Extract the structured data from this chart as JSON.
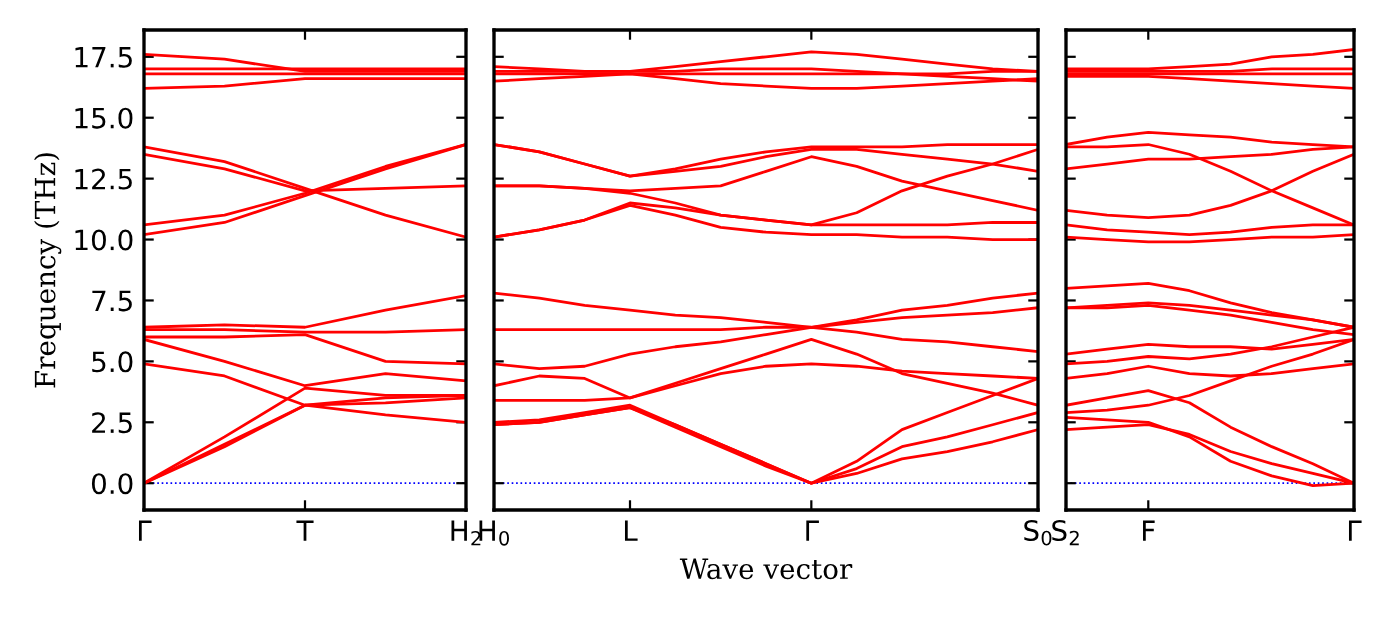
{
  "chart_data": [
    {
      "type": "line",
      "ylabel": "Frequency (THz)",
      "categories": [
        "Γ",
        null,
        "T",
        null,
        "H$_{2}$"
      ],
      "ylim": [
        -1.1,
        18.6
      ],
      "yticks": [
        {
          "value": 0,
          "label": "0.0"
        },
        {
          "value": 2.5,
          "label": "2.5"
        },
        {
          "value": 5,
          "label": "5.0"
        },
        {
          "value": 7.5,
          "label": "7.5"
        },
        {
          "value": 10,
          "label": "10.0"
        },
        {
          "value": 12.5,
          "label": "12.5"
        },
        {
          "value": 15,
          "label": "15.0"
        },
        {
          "value": 17.5,
          "label": "17.5"
        }
      ],
      "ref_lines": [
        {
          "axis": "y",
          "value": 0,
          "color": "#0000ff",
          "line_style": "dotted"
        }
      ],
      "grid": false,
      "legend": false,
      "marker": "none",
      "line_style": "solid",
      "series": [
        {
          "color": "#ff0000",
          "values": [
            17.6,
            17.4,
            16.9,
            16.9,
            16.9
          ]
        },
        {
          "color": "#ff0000",
          "values": [
            17.0,
            17.0,
            17.0,
            17.0,
            17.0
          ]
        },
        {
          "color": "#ff0000",
          "values": [
            16.8,
            16.8,
            16.8,
            16.8,
            16.8
          ]
        },
        {
          "color": "#ff0000",
          "values": [
            16.2,
            16.3,
            16.6,
            16.6,
            16.6
          ]
        },
        {
          "color": "#ff0000",
          "values": [
            13.8,
            13.2,
            12.1,
            11.0,
            10.1
          ]
        },
        {
          "color": "#ff0000",
          "values": [
            13.5,
            12.9,
            12.0,
            12.1,
            12.2
          ]
        },
        {
          "color": "#ff0000",
          "values": [
            10.6,
            11.0,
            11.9,
            13.0,
            13.9
          ]
        },
        {
          "color": "#ff0000",
          "values": [
            10.2,
            10.7,
            11.8,
            12.9,
            13.9
          ]
        },
        {
          "color": "#ff0000",
          "values": [
            6.4,
            6.5,
            6.4,
            7.1,
            7.7
          ]
        },
        {
          "color": "#ff0000",
          "values": [
            6.3,
            6.3,
            6.2,
            6.2,
            6.3
          ]
        },
        {
          "color": "#ff0000",
          "values": [
            6.0,
            6.0,
            6.1,
            5.0,
            4.9
          ]
        },
        {
          "color": "#ff0000",
          "values": [
            5.9,
            5.0,
            4.0,
            4.5,
            4.2
          ]
        },
        {
          "color": "#ff0000",
          "values": [
            4.9,
            4.4,
            3.2,
            3.5,
            3.6
          ]
        },
        {
          "color": "#ff0000",
          "values": [
            0,
            1.6,
            3.2,
            2.8,
            2.5
          ]
        },
        {
          "color": "#ff0000",
          "values": [
            0,
            1.9,
            3.9,
            3.6,
            3.6
          ]
        },
        {
          "color": "#ff0000",
          "values": [
            0,
            1.5,
            3.2,
            3.3,
            3.5
          ]
        }
      ]
    },
    {
      "type": "line",
      "xlabel": "Wave vector",
      "categories": [
        "H$_{0}$",
        null,
        null,
        "L",
        null,
        null,
        null,
        "Γ",
        null,
        null,
        null,
        null,
        "S$_{0}$"
      ],
      "ylim": [
        -1.1,
        18.6
      ],
      "yticks": [
        {
          "value": 0,
          "label": null
        },
        {
          "value": 2.5,
          "label": null
        },
        {
          "value": 5,
          "label": null
        },
        {
          "value": 7.5,
          "label": null
        },
        {
          "value": 10,
          "label": null
        },
        {
          "value": 12.5,
          "label": null
        },
        {
          "value": 15,
          "label": null
        },
        {
          "value": 17.5,
          "label": null
        }
      ],
      "tick_labels": "x",
      "ref_lines": [
        {
          "axis": "y",
          "value": 0,
          "color": "#0000ff",
          "line_style": "dotted"
        }
      ],
      "grid": false,
      "legend": false,
      "marker": "none",
      "line_style": "solid",
      "series": [
        {
          "color": "#ff0000",
          "values": [
            17.1,
            17.0,
            16.9,
            16.9,
            17.1,
            17.3,
            17.5,
            17.7,
            17.6,
            17.4,
            17.2,
            17.0,
            16.9
          ]
        },
        {
          "color": "#ff0000",
          "values": [
            16.9,
            16.9,
            16.9,
            16.9,
            16.9,
            17.0,
            17.0,
            17.0,
            16.9,
            16.8,
            16.7,
            16.6,
            16.5
          ]
        },
        {
          "color": "#ff0000",
          "values": [
            16.8,
            16.8,
            16.8,
            16.8,
            16.8,
            16.8,
            16.8,
            16.8,
            16.8,
            16.8,
            16.8,
            16.9,
            16.9
          ]
        },
        {
          "color": "#ff0000",
          "values": [
            16.5,
            16.6,
            16.7,
            16.8,
            16.6,
            16.4,
            16.3,
            16.2,
            16.2,
            16.3,
            16.4,
            16.5,
            16.6
          ]
        },
        {
          "color": "#ff0000",
          "values": [
            13.9,
            13.6,
            13.1,
            12.6,
            12.9,
            13.3,
            13.6,
            13.8,
            13.8,
            13.8,
            13.9,
            13.9,
            13.9
          ]
        },
        {
          "color": "#ff0000",
          "values": [
            13.9,
            13.6,
            13.1,
            12.6,
            12.8,
            13.0,
            13.4,
            13.7,
            13.7,
            13.5,
            13.3,
            13.1,
            12.8
          ]
        },
        {
          "color": "#ff0000",
          "values": [
            12.2,
            12.2,
            12.1,
            12.0,
            12.1,
            12.2,
            12.8,
            13.4,
            13.0,
            12.4,
            12.0,
            11.6,
            11.2
          ]
        },
        {
          "color": "#ff0000",
          "values": [
            12.2,
            12.2,
            12.1,
            11.9,
            11.5,
            11.0,
            10.8,
            10.6,
            11.1,
            12.0,
            12.6,
            13.1,
            13.7
          ]
        },
        {
          "color": "#ff0000",
          "values": [
            10.1,
            10.4,
            10.8,
            11.5,
            11.3,
            11.0,
            10.8,
            10.6,
            10.6,
            10.6,
            10.6,
            10.7,
            10.7
          ]
        },
        {
          "color": "#ff0000",
          "values": [
            10.1,
            10.4,
            10.8,
            11.4,
            11.0,
            10.5,
            10.3,
            10.2,
            10.2,
            10.1,
            10.1,
            10.0,
            10.0
          ]
        },
        {
          "color": "#ff0000",
          "values": [
            7.8,
            7.6,
            7.3,
            7.1,
            6.9,
            6.8,
            6.6,
            6.4,
            6.7,
            7.1,
            7.3,
            7.6,
            7.8
          ]
        },
        {
          "color": "#ff0000",
          "values": [
            6.3,
            6.3,
            6.3,
            6.3,
            6.3,
            6.3,
            6.4,
            6.4,
            6.6,
            6.8,
            6.9,
            7.0,
            7.2
          ]
        },
        {
          "color": "#ff0000",
          "values": [
            4.9,
            4.7,
            4.8,
            5.3,
            5.6,
            5.8,
            6.1,
            6.4,
            6.2,
            5.9,
            5.8,
            5.6,
            5.4
          ]
        },
        {
          "color": "#ff0000",
          "values": [
            4.0,
            4.4,
            4.3,
            3.5,
            4.1,
            4.7,
            5.3,
            5.9,
            5.3,
            4.5,
            4.1,
            3.7,
            3.2
          ]
        },
        {
          "color": "#ff0000",
          "values": [
            3.4,
            3.4,
            3.4,
            3.5,
            4.0,
            4.5,
            4.8,
            4.9,
            4.8,
            4.6,
            4.5,
            4.4,
            4.3
          ]
        },
        {
          "color": "#ff0000",
          "values": [
            2.4,
            2.5,
            2.8,
            3.1,
            2.4,
            1.6,
            0.8,
            0,
            0.9,
            2.2,
            2.9,
            3.6,
            4.3
          ]
        },
        {
          "color": "#ff0000",
          "values": [
            2.5,
            2.6,
            2.9,
            3.2,
            2.4,
            1.6,
            0.8,
            0,
            0.6,
            1.5,
            1.9,
            2.4,
            2.9
          ]
        },
        {
          "color": "#ff0000",
          "values": [
            2.4,
            2.5,
            2.8,
            3.1,
            2.3,
            1.5,
            0.7,
            0,
            0.4,
            1.0,
            1.3,
            1.7,
            2.2
          ]
        }
      ]
    },
    {
      "type": "line",
      "categories": [
        "S$_{2}$",
        null,
        "F",
        null,
        null,
        null,
        null,
        "Γ"
      ],
      "ylim": [
        -1.1,
        18.6
      ],
      "yticks": [
        {
          "value": 0,
          "label": null
        },
        {
          "value": 2.5,
          "label": null
        },
        {
          "value": 5,
          "label": null
        },
        {
          "value": 7.5,
          "label": null
        },
        {
          "value": 10,
          "label": null
        },
        {
          "value": 12.5,
          "label": null
        },
        {
          "value": 15,
          "label": null
        },
        {
          "value": 17.5,
          "label": null
        }
      ],
      "tick_labels": "x",
      "ref_lines": [
        {
          "axis": "y",
          "value": 0,
          "color": "#0000ff",
          "line_style": "dotted"
        }
      ],
      "grid": false,
      "legend": false,
      "marker": "none",
      "line_style": "solid",
      "series": [
        {
          "color": "#ff0000",
          "values": [
            17.0,
            17.0,
            17.0,
            17.1,
            17.2,
            17.5,
            17.6,
            17.8
          ]
        },
        {
          "color": "#ff0000",
          "values": [
            16.9,
            16.9,
            16.9,
            16.9,
            16.9,
            17.0,
            17.0,
            17.0
          ]
        },
        {
          "color": "#ff0000",
          "values": [
            16.8,
            16.8,
            16.8,
            16.8,
            16.8,
            16.8,
            16.8,
            16.8
          ]
        },
        {
          "color": "#ff0000",
          "values": [
            16.7,
            16.7,
            16.7,
            16.6,
            16.5,
            16.4,
            16.3,
            16.2
          ]
        },
        {
          "color": "#ff0000",
          "values": [
            13.9,
            14.2,
            14.4,
            14.3,
            14.2,
            14.0,
            13.9,
            13.8
          ]
        },
        {
          "color": "#ff0000",
          "values": [
            13.8,
            13.8,
            13.9,
            13.5,
            12.8,
            12.0,
            11.3,
            10.6
          ]
        },
        {
          "color": "#ff0000",
          "values": [
            12.9,
            13.1,
            13.3,
            13.3,
            13.4,
            13.5,
            13.7,
            13.8
          ]
        },
        {
          "color": "#ff0000",
          "values": [
            11.2,
            11.0,
            10.9,
            11.0,
            11.4,
            12.0,
            12.8,
            13.5
          ]
        },
        {
          "color": "#ff0000",
          "values": [
            10.6,
            10.4,
            10.3,
            10.2,
            10.3,
            10.5,
            10.6,
            10.6
          ]
        },
        {
          "color": "#ff0000",
          "values": [
            10.1,
            10.0,
            9.9,
            9.9,
            10.0,
            10.1,
            10.1,
            10.2
          ]
        },
        {
          "color": "#ff0000",
          "values": [
            8.0,
            8.1,
            8.2,
            7.9,
            7.4,
            7.0,
            6.7,
            6.4
          ]
        },
        {
          "color": "#ff0000",
          "values": [
            7.2,
            7.3,
            7.4,
            7.3,
            7.1,
            6.9,
            6.7,
            6.4
          ]
        },
        {
          "color": "#ff0000",
          "values": [
            7.2,
            7.2,
            7.3,
            7.1,
            6.9,
            6.6,
            6.3,
            6.1
          ]
        },
        {
          "color": "#ff0000",
          "values": [
            5.3,
            5.5,
            5.7,
            5.6,
            5.6,
            5.5,
            5.7,
            5.9
          ]
        },
        {
          "color": "#ff0000",
          "values": [
            4.9,
            5.0,
            5.2,
            5.1,
            5.3,
            5.6,
            6.0,
            6.4
          ]
        },
        {
          "color": "#ff0000",
          "values": [
            4.3,
            4.5,
            4.8,
            4.5,
            4.4,
            4.5,
            4.7,
            4.9
          ]
        },
        {
          "color": "#ff0000",
          "values": [
            3.2,
            3.5,
            3.8,
            3.3,
            2.3,
            1.5,
            0.8,
            0.0
          ]
        },
        {
          "color": "#ff0000",
          "values": [
            2.9,
            3.0,
            3.2,
            3.6,
            4.2,
            4.8,
            5.3,
            5.9
          ]
        },
        {
          "color": "#ff0000",
          "values": [
            2.2,
            2.3,
            2.4,
            2.0,
            1.3,
            0.8,
            0.4,
            0.0
          ]
        },
        {
          "color": "#ff0000",
          "values": [
            2.7,
            2.6,
            2.5,
            1.9,
            0.9,
            0.3,
            -0.1,
            0.0
          ]
        }
      ]
    }
  ]
}
